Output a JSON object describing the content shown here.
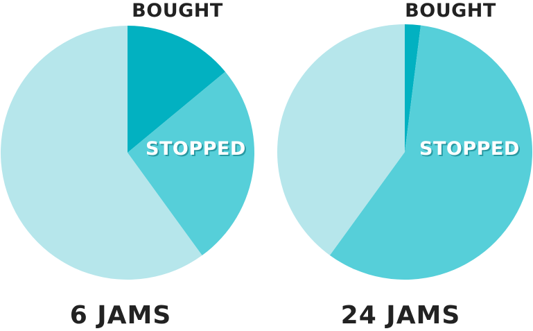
{
  "chart_data": [
    {
      "type": "pie",
      "caption": "6 JAMS",
      "slices": [
        {
          "label": "BOUGHT",
          "fraction": 0.14,
          "color": "#02b1c1"
        },
        {
          "label": "STOPPED",
          "fraction": 0.26,
          "color": "#56cfd9"
        },
        {
          "label": "",
          "fraction": 0.6,
          "color": "#b6e6eb"
        }
      ]
    },
    {
      "type": "pie",
      "caption": "24 JAMS",
      "slices": [
        {
          "label": "BOUGHT",
          "fraction": 0.02,
          "color": "#02b1c1"
        },
        {
          "label": "STOPPED",
          "fraction": 0.58,
          "color": "#56cfd9"
        },
        {
          "label": "",
          "fraction": 0.4,
          "color": "#b6e6eb"
        }
      ]
    }
  ]
}
